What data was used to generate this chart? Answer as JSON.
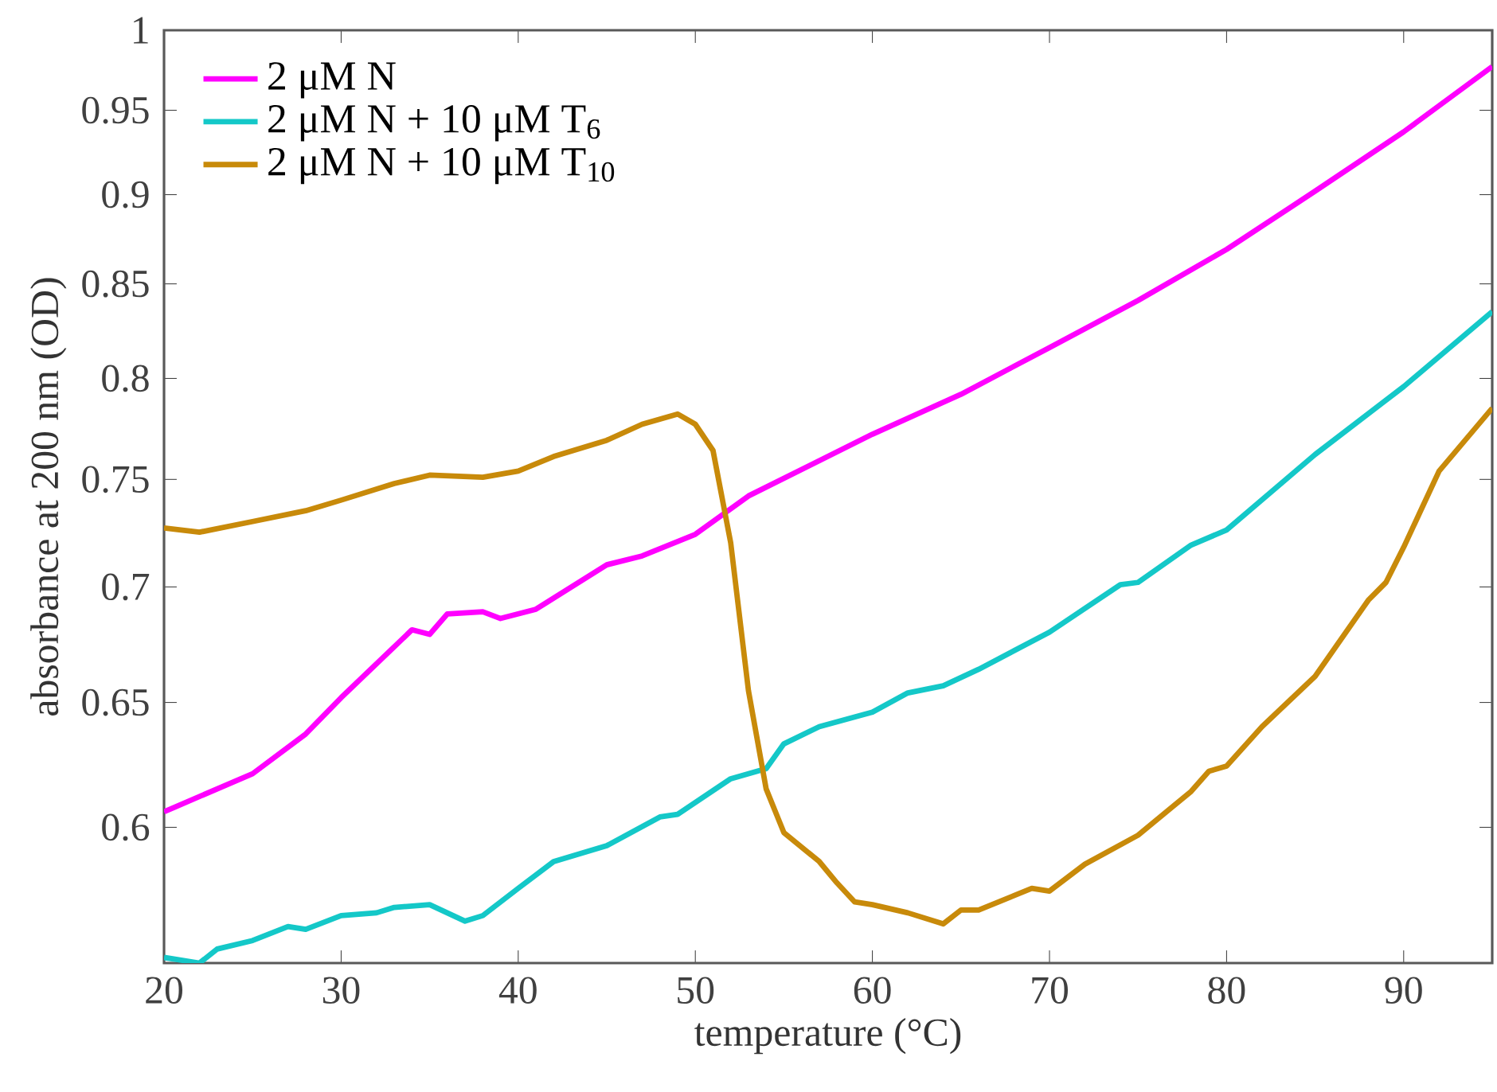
{
  "chart_data": {
    "type": "line",
    "xlabel": "temperature (°C)",
    "ylabel": "absorbance at 200 nm (OD)",
    "xlim": [
      20,
      95
    ],
    "xticks": [
      20,
      30,
      40,
      50,
      60,
      70,
      80,
      90
    ],
    "ylim": [
      0.55,
      1
    ],
    "yticks": [
      0.6,
      0.65,
      0.7,
      0.75,
      0.8,
      0.85,
      0.9,
      0.95,
      1
    ],
    "log": "y",
    "legend": "top left",
    "grid": false,
    "marker": "none",
    "line_style": "solid",
    "series": [
      {
        "name": "2 μM N",
        "color": "#ff00ff",
        "x": [
          20,
          25,
          28,
          30,
          34,
          35,
          36,
          38,
          39,
          41,
          45,
          47,
          50,
          53,
          60,
          65,
          70,
          75,
          80,
          85,
          90,
          95
        ],
        "values": [
          0.606,
          0.621,
          0.637,
          0.652,
          0.681,
          0.679,
          0.688,
          0.689,
          0.686,
          0.69,
          0.71,
          0.714,
          0.724,
          0.742,
          0.772,
          0.792,
          0.816,
          0.841,
          0.869,
          0.902,
          0.937,
          0.977
        ]
      },
      {
        "name": "2 μM N + 10 μM T$_{6}$",
        "color": "#14c8c8",
        "x": [
          20,
          22,
          23,
          25,
          27,
          28,
          30,
          32,
          33,
          35,
          37,
          38,
          40,
          42,
          45,
          48,
          49,
          52,
          54,
          55,
          57,
          60,
          62,
          64,
          66,
          70,
          74,
          75,
          78,
          80,
          85,
          90,
          95
        ],
        "values": [
          0.552,
          0.55,
          0.555,
          0.558,
          0.563,
          0.562,
          0.567,
          0.568,
          0.57,
          0.571,
          0.565,
          0.567,
          0.577,
          0.587,
          0.593,
          0.604,
          0.605,
          0.619,
          0.623,
          0.633,
          0.64,
          0.646,
          0.654,
          0.657,
          0.664,
          0.68,
          0.701,
          0.702,
          0.719,
          0.726,
          0.762,
          0.796,
          0.835
        ]
      },
      {
        "name": "2 μM N + 10 μM T$_{10}$",
        "color": "#c88a0a",
        "x": [
          20,
          22,
          25,
          28,
          30,
          33,
          35,
          38,
          40,
          42,
          45,
          47,
          49,
          50,
          51,
          52,
          53,
          54,
          55,
          57,
          58,
          59,
          60,
          62,
          64,
          65,
          66,
          69,
          70,
          72,
          75,
          78,
          79,
          80,
          82,
          85,
          88,
          89,
          90,
          92,
          95
        ],
        "values": [
          0.727,
          0.725,
          0.73,
          0.735,
          0.74,
          0.748,
          0.752,
          0.751,
          0.754,
          0.761,
          0.769,
          0.777,
          0.782,
          0.777,
          0.764,
          0.72,
          0.655,
          0.615,
          0.598,
          0.587,
          0.579,
          0.572,
          0.571,
          0.568,
          0.564,
          0.569,
          0.569,
          0.577,
          0.576,
          0.586,
          0.597,
          0.614,
          0.622,
          0.624,
          0.64,
          0.661,
          0.694,
          0.702,
          0.718,
          0.754,
          0.785
        ]
      }
    ]
  }
}
